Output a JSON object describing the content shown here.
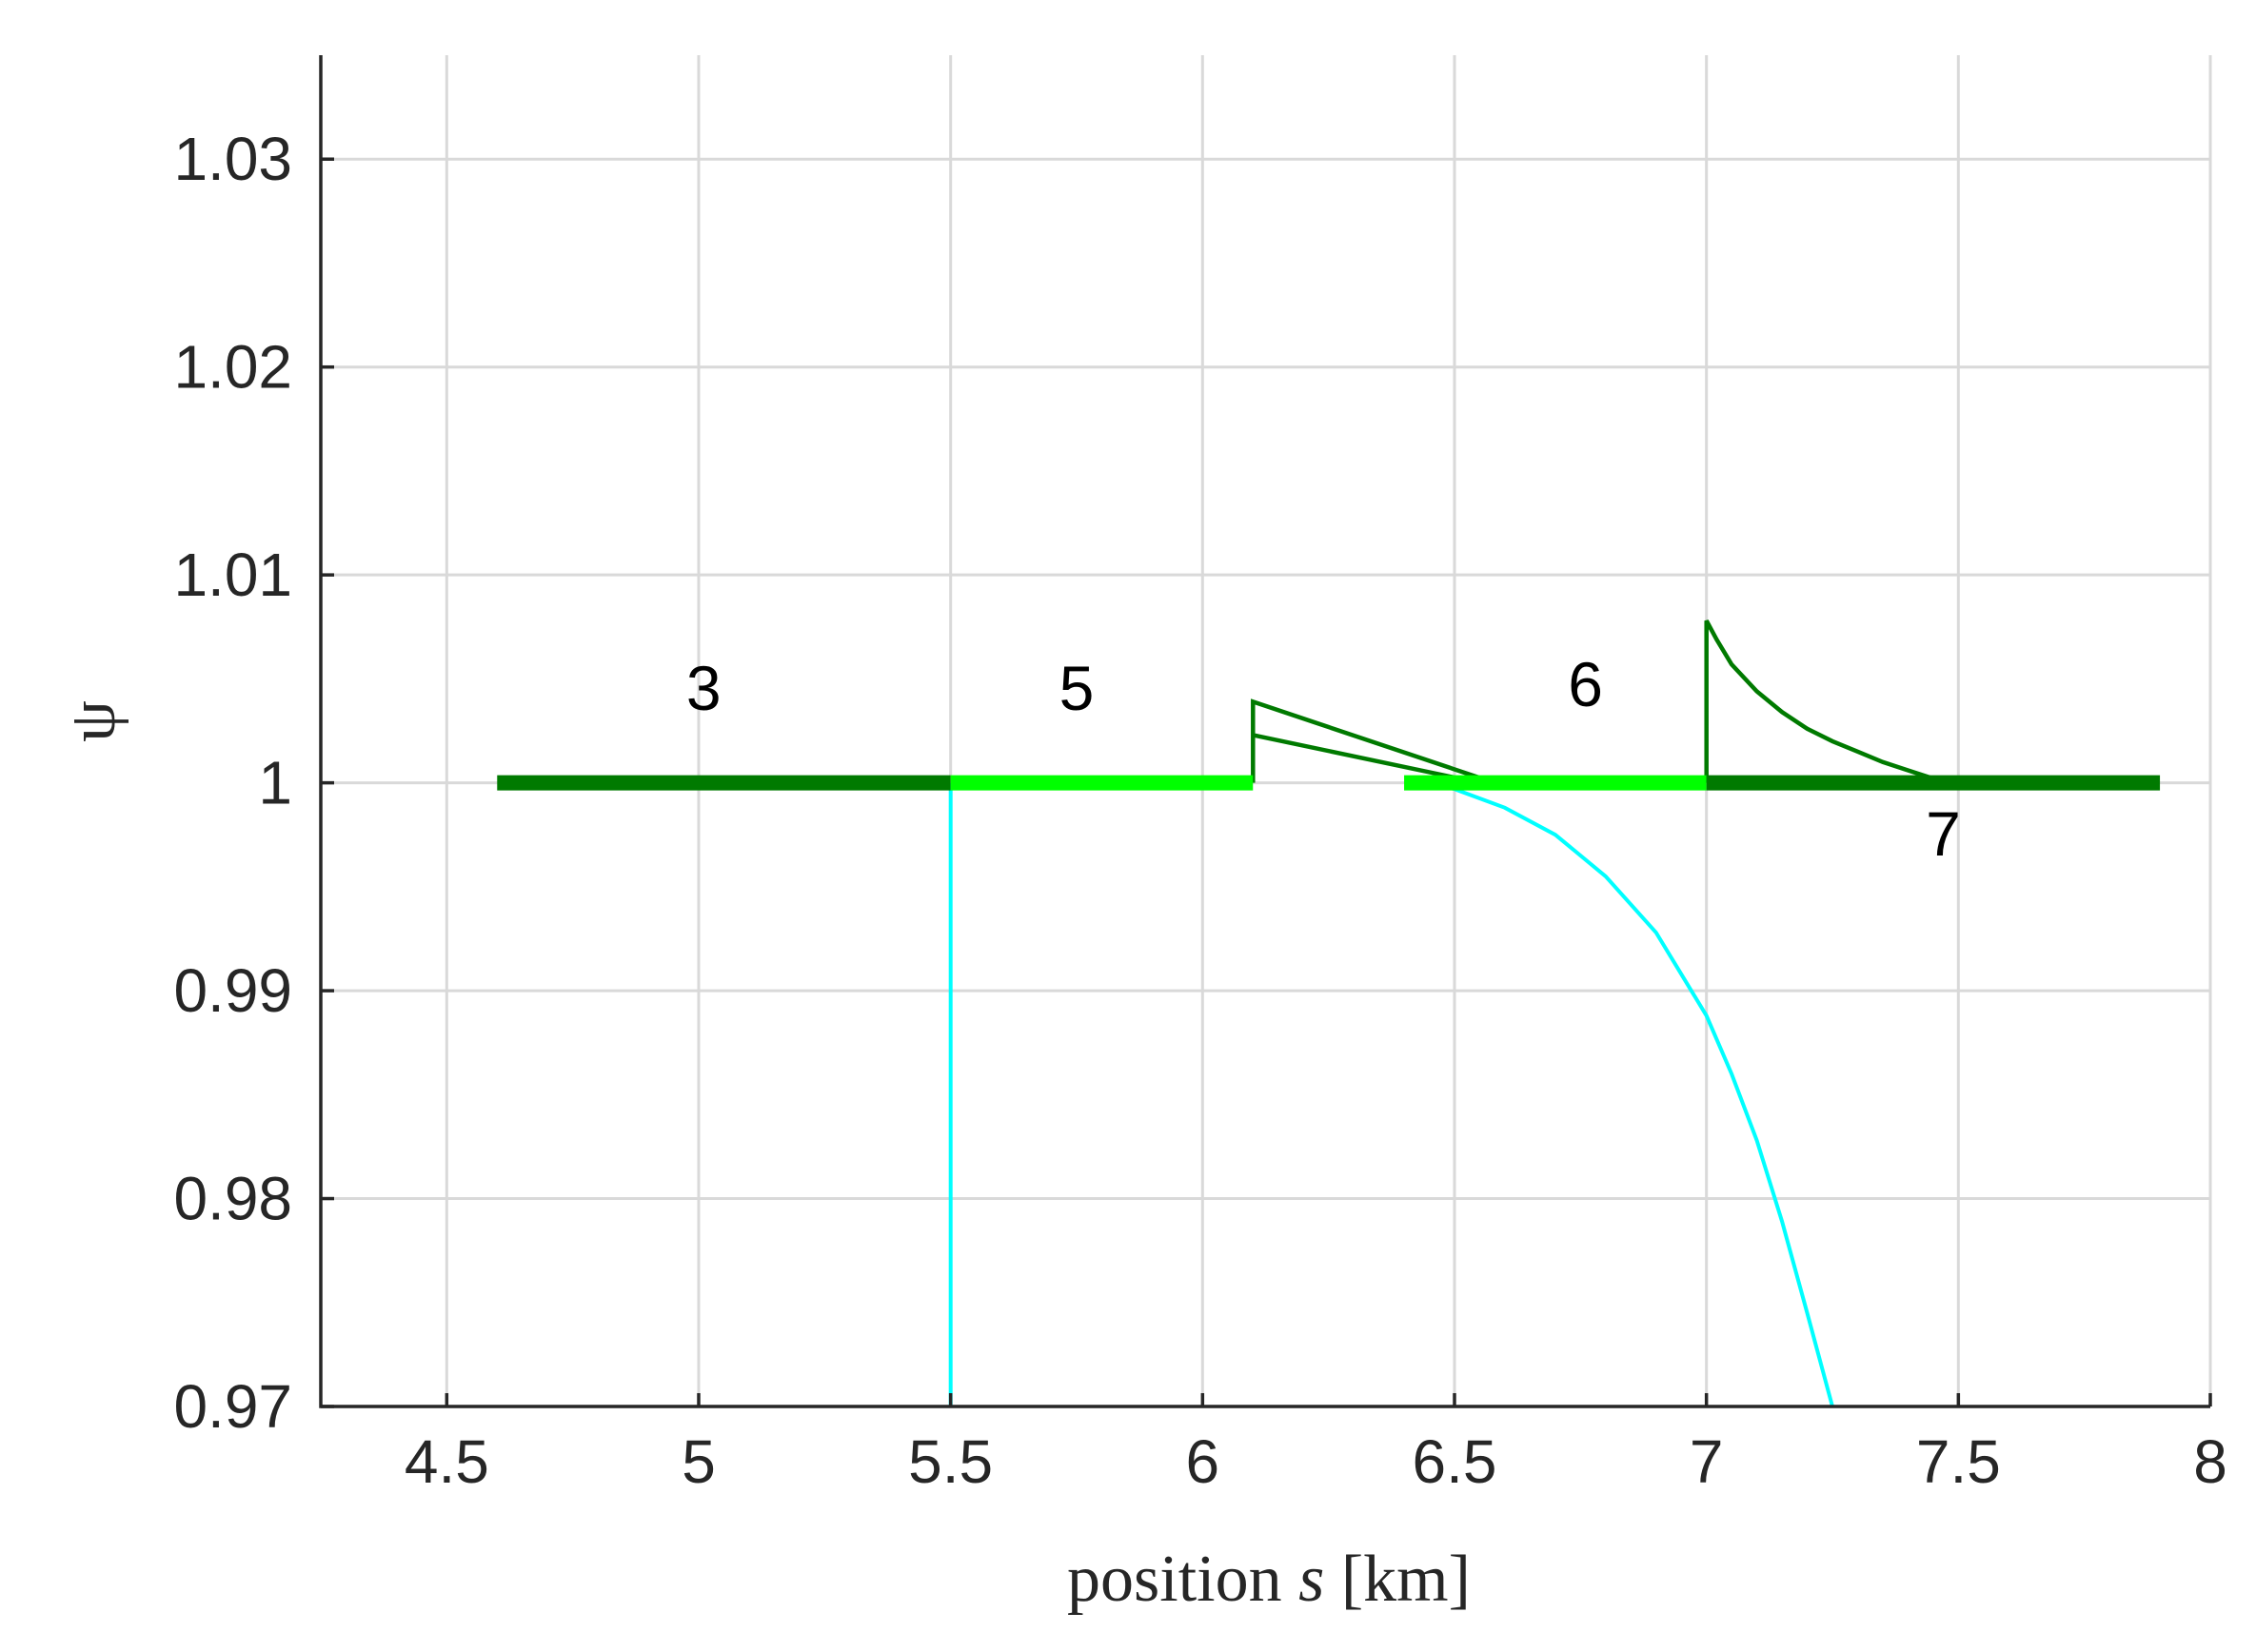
{
  "chart_data": {
    "type": "line",
    "xlabel": "position",
    "xlabel_var": "s",
    "xlabel_unit": "[km]",
    "ylabel": "ψ",
    "xlim": [
      4.25,
      8
    ],
    "ylim": [
      0.97,
      1.035
    ],
    "xticks": [
      4.5,
      5,
      5.5,
      6,
      6.5,
      7,
      7.5,
      8
    ],
    "xtick_labels": [
      "4.5",
      "5",
      "5.5",
      "6",
      "6.5",
      "7",
      "7.5",
      "8"
    ],
    "yticks": [
      0.97,
      0.98,
      0.99,
      1.0,
      1.01,
      1.02,
      1.03
    ],
    "ytick_labels": [
      "0.97",
      "0.98",
      "0.99",
      "1",
      "1.01",
      "1.02",
      "1.03"
    ],
    "grid": true,
    "colors": {
      "dark_green": "#007a00",
      "light_green": "#00ff00",
      "cyan": "#00ffff"
    },
    "segments": [
      {
        "label": "3",
        "x_start": 4.6,
        "x_end": 5.5,
        "y": 1.0,
        "color": "dark_green",
        "label_x": 5.01,
        "label_y": 1.0035
      },
      {
        "label": "5",
        "x_start": 5.5,
        "x_end": 6.1,
        "y": 1.0,
        "color": "light_green",
        "label_x": 5.75,
        "label_y": 1.0035
      },
      {
        "label": "6",
        "x_start": 6.4,
        "x_end": 7.0,
        "y": 1.0,
        "color": "light_green",
        "label_x": 6.76,
        "label_y": 1.0037
      },
      {
        "label": "7",
        "x_start": 7.0,
        "x_end": 7.9,
        "y": 1.0,
        "color": "dark_green",
        "label_x": 7.47,
        "label_y": 0.9965
      }
    ],
    "series": [
      {
        "color": "dark_green",
        "x": [
          6.1,
          6.1,
          6.58
        ],
        "y": [
          1.0,
          1.0039,
          1.0
        ]
      },
      {
        "color": "dark_green",
        "x": [
          6.1,
          6.55
        ],
        "y": [
          1.0023,
          1.0
        ]
      },
      {
        "color": "dark_green",
        "x": [
          7.0,
          7.0,
          7.02,
          7.05,
          7.1,
          7.15,
          7.2,
          7.25,
          7.3,
          7.35,
          7.4,
          7.45,
          7.48
        ],
        "y": [
          1.0,
          1.0078,
          1.0069,
          1.0057,
          1.0044,
          1.0034,
          1.0026,
          1.002,
          1.0015,
          1.001,
          1.0006,
          1.0002,
          1.0
        ]
      },
      {
        "color": "cyan",
        "x": [
          5.5,
          5.5
        ],
        "y": [
          0.97,
          1.0
        ]
      },
      {
        "color": "cyan",
        "x": [
          6.45,
          6.5,
          6.6,
          6.7,
          6.8,
          6.9,
          7.0,
          7.05,
          7.1,
          7.15,
          7.2,
          7.25
        ],
        "y": [
          1.0,
          0.9997,
          0.9988,
          0.9975,
          0.9955,
          0.9928,
          0.9888,
          0.986,
          0.9828,
          0.9789,
          0.9745,
          0.97
        ]
      }
    ]
  }
}
